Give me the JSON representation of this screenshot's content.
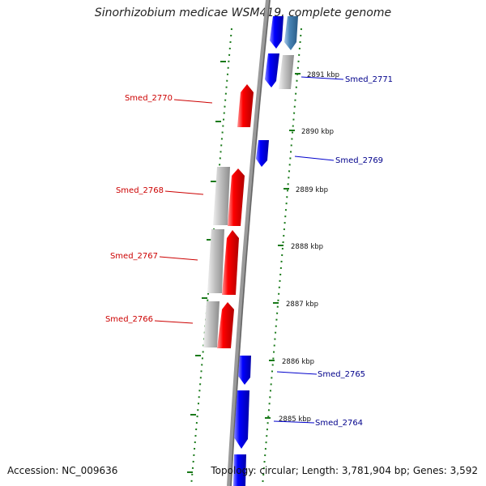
{
  "title": "Sinorhizobium medicae WSM419, complete genome",
  "footer": {
    "accession": "Accession: NC_009636",
    "summary": "Topology: circular; Length: 3,781,904 bp; Genes: 3,592"
  },
  "kbp_labels": [
    "2891 kbp",
    "2890 kbp",
    "2889 kbp",
    "2888 kbp",
    "2887 kbp",
    "2886 kbp",
    "2885 kbp"
  ],
  "gene_labels": {
    "smed_2771": "Smed_2771",
    "smed_2770": "Smed_2770",
    "smed_2769": "Smed_2769",
    "smed_2768": "Smed_2768",
    "smed_2767": "Smed_2767",
    "smed_2766": "Smed_2766",
    "smed_2765": "Smed_2765",
    "smed_2764": "Smed_2764"
  },
  "colors": {
    "forward_strand": "#ff0000",
    "reverse_strand": "#0000ff",
    "rna_feature": "#4682b4",
    "cds_gray": "#c0c0c0",
    "tick_green": "#1a7a1a",
    "backbone": "#888888"
  }
}
